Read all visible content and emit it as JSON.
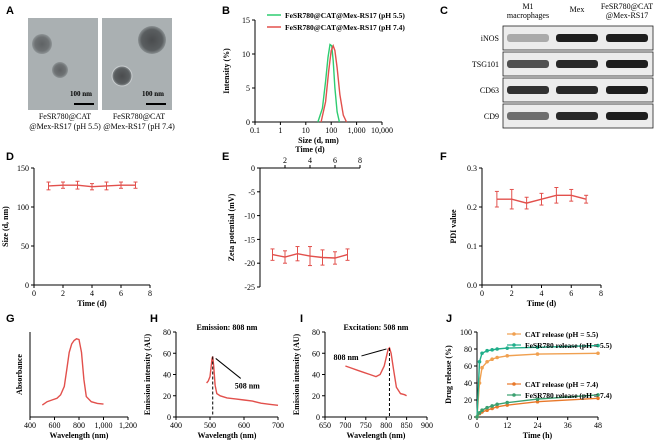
{
  "colors": {
    "red": "#e2504c",
    "green": "#2ecc71",
    "orange": "#f0a050",
    "teal": "#1fae8a",
    "orange_dark": "#e8782a",
    "teal_dark": "#3aa070"
  },
  "panel_letters": [
    "A",
    "B",
    "C",
    "D",
    "E",
    "F",
    "G",
    "H",
    "I",
    "J"
  ],
  "tem": {
    "left": {
      "caption_line1": "FeSR780@CAT",
      "caption_line2": "@Mex-RS17 (pH 5.5)",
      "scale_label": "100 nm"
    },
    "right": {
      "caption_line1": "FeSR780@CAT",
      "caption_line2": "@Mex-RS17 (pH 7.4)",
      "scale_label": "100 nm"
    }
  },
  "blot": {
    "columns": [
      "M1 macrophages",
      "Mex",
      "FeSR780@CAT @Mex-RS17"
    ],
    "column_lines": [
      [
        "M1",
        "macrophages"
      ],
      [
        "Mex"
      ],
      [
        "FeSR780@CAT",
        "@Mex-RS17"
      ]
    ],
    "rows": [
      "iNOS",
      "TSG101",
      "CD63",
      "CD9"
    ]
  },
  "chart_data": [
    {
      "panel": "B",
      "type": "line",
      "title": "",
      "xlabel": "Size (d, nm)",
      "ylabel": "Intensity (%)",
      "xscale": "log",
      "xlim": [
        0.1,
        10000
      ],
      "ylim": [
        0,
        15
      ],
      "xticks": [
        "0.1",
        "1",
        "10",
        "100",
        "1,000",
        "10,000"
      ],
      "yticks": [
        "0",
        "5",
        "10",
        "15"
      ],
      "legend_position": "top-left",
      "series": [
        {
          "name": "FeSR780@CAT@Mex-RS17 (pH 5.5)",
          "color": "green",
          "x": [
            30,
            45,
            60,
            75,
            90,
            105,
            120,
            140,
            170,
            210
          ],
          "y": [
            0,
            2,
            6,
            9.5,
            11.4,
            11.2,
            9,
            5,
            1.5,
            0
          ]
        },
        {
          "name": "FeSR780@CAT@Mex-RS17 (pH 7.4)",
          "color": "red",
          "x": [
            40,
            60,
            80,
            100,
            120,
            140,
            170,
            220,
            300,
            400
          ],
          "y": [
            0,
            3,
            7.5,
            10.5,
            11.2,
            10.5,
            8,
            4,
            1,
            0
          ]
        }
      ]
    },
    {
      "panel": "D",
      "type": "line",
      "xlabel": "Time (d)",
      "ylabel": "Size (d, nm)",
      "xlim": [
        0,
        8
      ],
      "ylim": [
        0,
        150
      ],
      "xticks": [
        "0",
        "2",
        "4",
        "6",
        "8"
      ],
      "yticks": [
        "0",
        "50",
        "100",
        "150"
      ],
      "series": [
        {
          "name": "Size",
          "color": "red",
          "x": [
            1,
            2,
            3,
            4,
            5,
            6,
            7
          ],
          "y": [
            127,
            128,
            128,
            126,
            127,
            128,
            128
          ],
          "err": [
            5,
            4,
            5,
            4,
            5,
            4,
            4
          ]
        }
      ]
    },
    {
      "panel": "E",
      "type": "line",
      "xlabel": "Time (d)",
      "ylabel": "Zeta potential (mV)",
      "xlim": [
        0,
        8
      ],
      "ylim": [
        -25,
        0
      ],
      "xticks": [
        "2",
        "4",
        "6",
        "8"
      ],
      "yticks": [
        "-25",
        "-20",
        "-15",
        "-10",
        "-5",
        "0"
      ],
      "xaxis_position": "top",
      "series": [
        {
          "name": "Zeta",
          "color": "red",
          "x": [
            1,
            2,
            3,
            4,
            5,
            6,
            7
          ],
          "y": [
            -18.2,
            -18.7,
            -18,
            -18.5,
            -18.8,
            -18.9,
            -18.2
          ],
          "err": [
            1.2,
            1.3,
            1.5,
            2,
            1.6,
            1.3,
            1.2
          ]
        }
      ]
    },
    {
      "panel": "F",
      "type": "line",
      "xlabel": "Time (d)",
      "ylabel": "PDI value",
      "xlim": [
        0,
        8
      ],
      "ylim": [
        0,
        0.3
      ],
      "xticks": [
        "0",
        "2",
        "4",
        "6",
        "8"
      ],
      "yticks": [
        "0.0",
        "0.1",
        "0.2",
        "0.3"
      ],
      "series": [
        {
          "name": "PDI",
          "color": "red",
          "x": [
            1,
            2,
            3,
            4,
            5,
            6,
            7
          ],
          "y": [
            0.22,
            0.22,
            0.21,
            0.22,
            0.23,
            0.23,
            0.22
          ],
          "err": [
            0.02,
            0.025,
            0.015,
            0.015,
            0.02,
            0.015,
            0.01
          ]
        }
      ]
    },
    {
      "panel": "G",
      "type": "line",
      "xlabel": "Wavelength (nm)",
      "ylabel": "Absorbance",
      "xlim": [
        400,
        1200
      ],
      "ylim": [
        0.5,
        3.0
      ],
      "xticks": [
        "400",
        "600",
        "800",
        "1,000",
        "1,200"
      ],
      "yticks": [],
      "series": [
        {
          "name": "Absorbance",
          "color": "red",
          "x": [
            500,
            540,
            580,
            620,
            650,
            680,
            700,
            720,
            740,
            760,
            780,
            800,
            820,
            840,
            860,
            900,
            950,
            1000
          ],
          "y": [
            0.85,
            0.95,
            1.0,
            1.05,
            1.15,
            1.4,
            1.9,
            2.4,
            2.65,
            2.75,
            2.8,
            2.78,
            2.4,
            1.6,
            1.1,
            0.95,
            0.9,
            0.88
          ]
        }
      ]
    },
    {
      "panel": "H",
      "type": "line",
      "title": "Emission: 808 nm",
      "xlabel": "Wavelength (nm)",
      "ylabel": "Emission intensity (AU)",
      "xlim": [
        400,
        700
      ],
      "ylim": [
        0,
        80
      ],
      "xticks": [
        "400",
        "500",
        "600",
        "700"
      ],
      "yticks": [
        "0",
        "20",
        "40",
        "60",
        "80"
      ],
      "annotation": "508 nm",
      "annotation_x": 508,
      "series": [
        {
          "name": "Emission",
          "color": "red",
          "x": [
            490,
            495,
            500,
            503,
            506,
            508,
            511,
            515,
            520,
            530,
            550,
            575,
            600,
            625,
            650,
            675,
            700
          ],
          "y": [
            32,
            34,
            38,
            46,
            55,
            57,
            48,
            30,
            22,
            20,
            18,
            17,
            16,
            15,
            13,
            12,
            11
          ]
        }
      ]
    },
    {
      "panel": "I",
      "type": "line",
      "title": "Excitation: 508 nm",
      "xlabel": "Wavelength (nm)",
      "ylabel": "Emission intensity (AU)",
      "xlim": [
        650,
        900
      ],
      "ylim": [
        0,
        80
      ],
      "xticks": [
        "650",
        "700",
        "750",
        "800",
        "850",
        "900"
      ],
      "yticks": [
        "0",
        "20",
        "40",
        "60",
        "80"
      ],
      "annotation": "808 nm",
      "annotation_x": 808,
      "series": [
        {
          "name": "Excitation",
          "color": "red",
          "x": [
            700,
            715,
            730,
            745,
            760,
            775,
            785,
            795,
            800,
            805,
            808,
            812,
            818,
            825,
            835,
            845,
            850
          ],
          "y": [
            48,
            46,
            44,
            42,
            40,
            38,
            40,
            48,
            56,
            64,
            65,
            60,
            45,
            28,
            22,
            21,
            20
          ]
        }
      ]
    },
    {
      "panel": "J",
      "type": "line",
      "xlabel": "Time (h)",
      "ylabel": "Drug release (%)",
      "xlim": [
        0,
        48
      ],
      "ylim": [
        0,
        100
      ],
      "xticks": [
        "0",
        "12",
        "24",
        "36",
        "48"
      ],
      "yticks": [
        "0",
        "20",
        "40",
        "60",
        "80",
        "100"
      ],
      "series": [
        {
          "name": "CAT release (pH = 5.5)",
          "color": "orange",
          "x": [
            0,
            1,
            2,
            4,
            6,
            8,
            12,
            24,
            48
          ],
          "y": [
            0,
            40,
            58,
            65,
            68,
            70,
            72,
            74,
            75
          ]
        },
        {
          "name": "FeSR780 release (pH = 5.5)",
          "color": "teal",
          "x": [
            0,
            1,
            2,
            4,
            6,
            8,
            12,
            24,
            48
          ],
          "y": [
            0,
            65,
            75,
            78,
            79,
            80,
            81,
            82,
            84
          ]
        },
        {
          "name": "CAT release (pH = 7.4)",
          "color": "orange_dark",
          "x": [
            0,
            1,
            2,
            4,
            6,
            8,
            12,
            24,
            48
          ],
          "y": [
            0,
            4,
            6,
            8,
            10,
            12,
            14,
            18,
            22
          ]
        },
        {
          "name": "FeSR780 release (pH = 7.4)",
          "color": "teal_dark",
          "x": [
            0,
            1,
            2,
            4,
            6,
            8,
            12,
            24,
            48
          ],
          "y": [
            0,
            5,
            8,
            11,
            13,
            15,
            17,
            21,
            26
          ]
        }
      ]
    }
  ]
}
